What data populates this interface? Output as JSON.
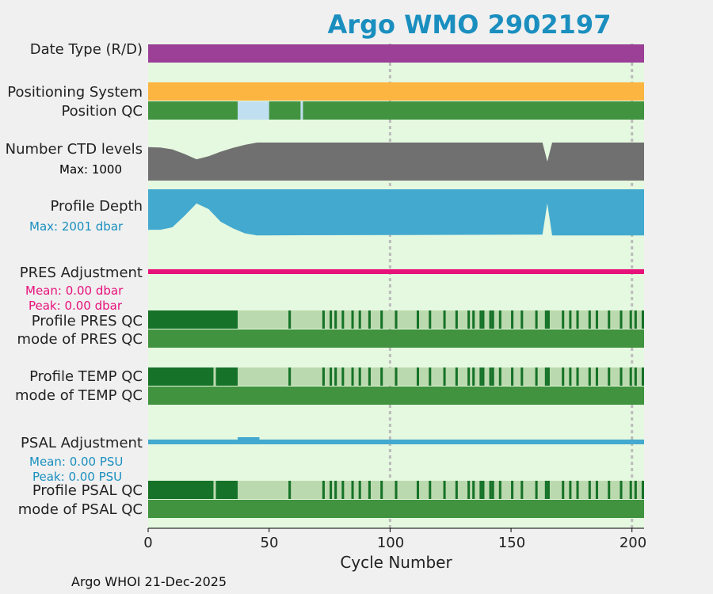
{
  "title": "Argo WMO 2902197",
  "footer": "Argo WHOI 21-Dec-2025",
  "chart_data": {
    "type": "bar",
    "title": "Argo WMO 2902197",
    "xlabel": "Cycle Number",
    "xlim": [
      0,
      205
    ],
    "xticks": [
      0,
      50,
      100,
      150,
      200
    ],
    "gridlines_x": [
      100,
      200
    ],
    "rows": [
      {
        "key": "date_type",
        "label": "Date Type (R/D)"
      },
      {
        "key": "positioning",
        "label": "Positioning System"
      },
      {
        "key": "position_qc",
        "label": "Position QC"
      },
      {
        "key": "ctd_levels",
        "label": "Number CTD levels",
        "note": "Max: 1000",
        "max": 1000
      },
      {
        "key": "profile_depth",
        "label": "Profile Depth",
        "note": "Max: 2001 dbar",
        "max": 2001
      },
      {
        "key": "pres_adj",
        "label": "PRES Adjustment",
        "notes": [
          "Mean: 0.00 dbar",
          "Peak: 0.00 dbar"
        ]
      },
      {
        "key": "pres_qc",
        "label": "Profile PRES QC"
      },
      {
        "key": "pres_mode",
        "label": "mode of PRES QC"
      },
      {
        "key": "temp_qc",
        "label": "Profile TEMP QC"
      },
      {
        "key": "temp_mode",
        "label": "mode of TEMP QC"
      },
      {
        "key": "psal_adj",
        "label": "PSAL Adjustment",
        "notes": [
          "Mean: 0.00 PSU",
          "Peak: 0.00 PSU"
        ]
      },
      {
        "key": "psal_qc",
        "label": "Profile PSAL QC"
      },
      {
        "key": "psal_mode",
        "label": "mode of PSAL QC"
      }
    ],
    "position_qc_gaps": [
      [
        37,
        50
      ],
      [
        63,
        64
      ]
    ],
    "ctd_levels_profile": [
      [
        0,
        880
      ],
      [
        5,
        870
      ],
      [
        10,
        820
      ],
      [
        15,
        700
      ],
      [
        20,
        560
      ],
      [
        25,
        640
      ],
      [
        30,
        760
      ],
      [
        35,
        860
      ],
      [
        40,
        940
      ],
      [
        45,
        1000
      ],
      [
        163,
        1000
      ],
      [
        165,
        500
      ],
      [
        167,
        1000
      ],
      [
        205,
        1000
      ]
    ],
    "profile_depth_profile": [
      [
        0,
        1600
      ],
      [
        5,
        1600
      ],
      [
        10,
        1500
      ],
      [
        15,
        1050
      ],
      [
        20,
        560
      ],
      [
        25,
        780
      ],
      [
        30,
        1280
      ],
      [
        35,
        1540
      ],
      [
        40,
        1740
      ],
      [
        45,
        1820
      ],
      [
        163,
        1790
      ],
      [
        165,
        550
      ],
      [
        167,
        1820
      ],
      [
        205,
        1820
      ]
    ],
    "psal_adj_bump": [
      [
        37,
        46
      ]
    ],
    "qc_dark_start": [
      0,
      37
    ],
    "temp_dark_segments": [
      [
        0,
        27
      ],
      [
        28,
        37
      ]
    ],
    "qc_dark_cycles": [
      58,
      72,
      75,
      77,
      80,
      84,
      87,
      91,
      96,
      102,
      111,
      116,
      122,
      127,
      132,
      134,
      137,
      138,
      141,
      142,
      145,
      150,
      154,
      160,
      164,
      165,
      171,
      174,
      177,
      182,
      185,
      190,
      195,
      199,
      201,
      204
    ],
    "colors": {
      "date_type": "#9b3f97",
      "positioning": "#fbb540",
      "qc_good": "#41933f",
      "qc_gap": "#c0dff0",
      "ctd": "#707070",
      "depth": "#43a9cf",
      "pres_adj": "#e7117a",
      "psal_adj": "#43a9cf",
      "qc_dark": "#167228",
      "qc_light": "#bbd9ae",
      "mode": "#41933f",
      "panel_bg": "#e5f8e0",
      "pres_note": "#e7117a",
      "psal_note": "#1a8fbf",
      "depth_note": "#1a8fbf"
    }
  }
}
